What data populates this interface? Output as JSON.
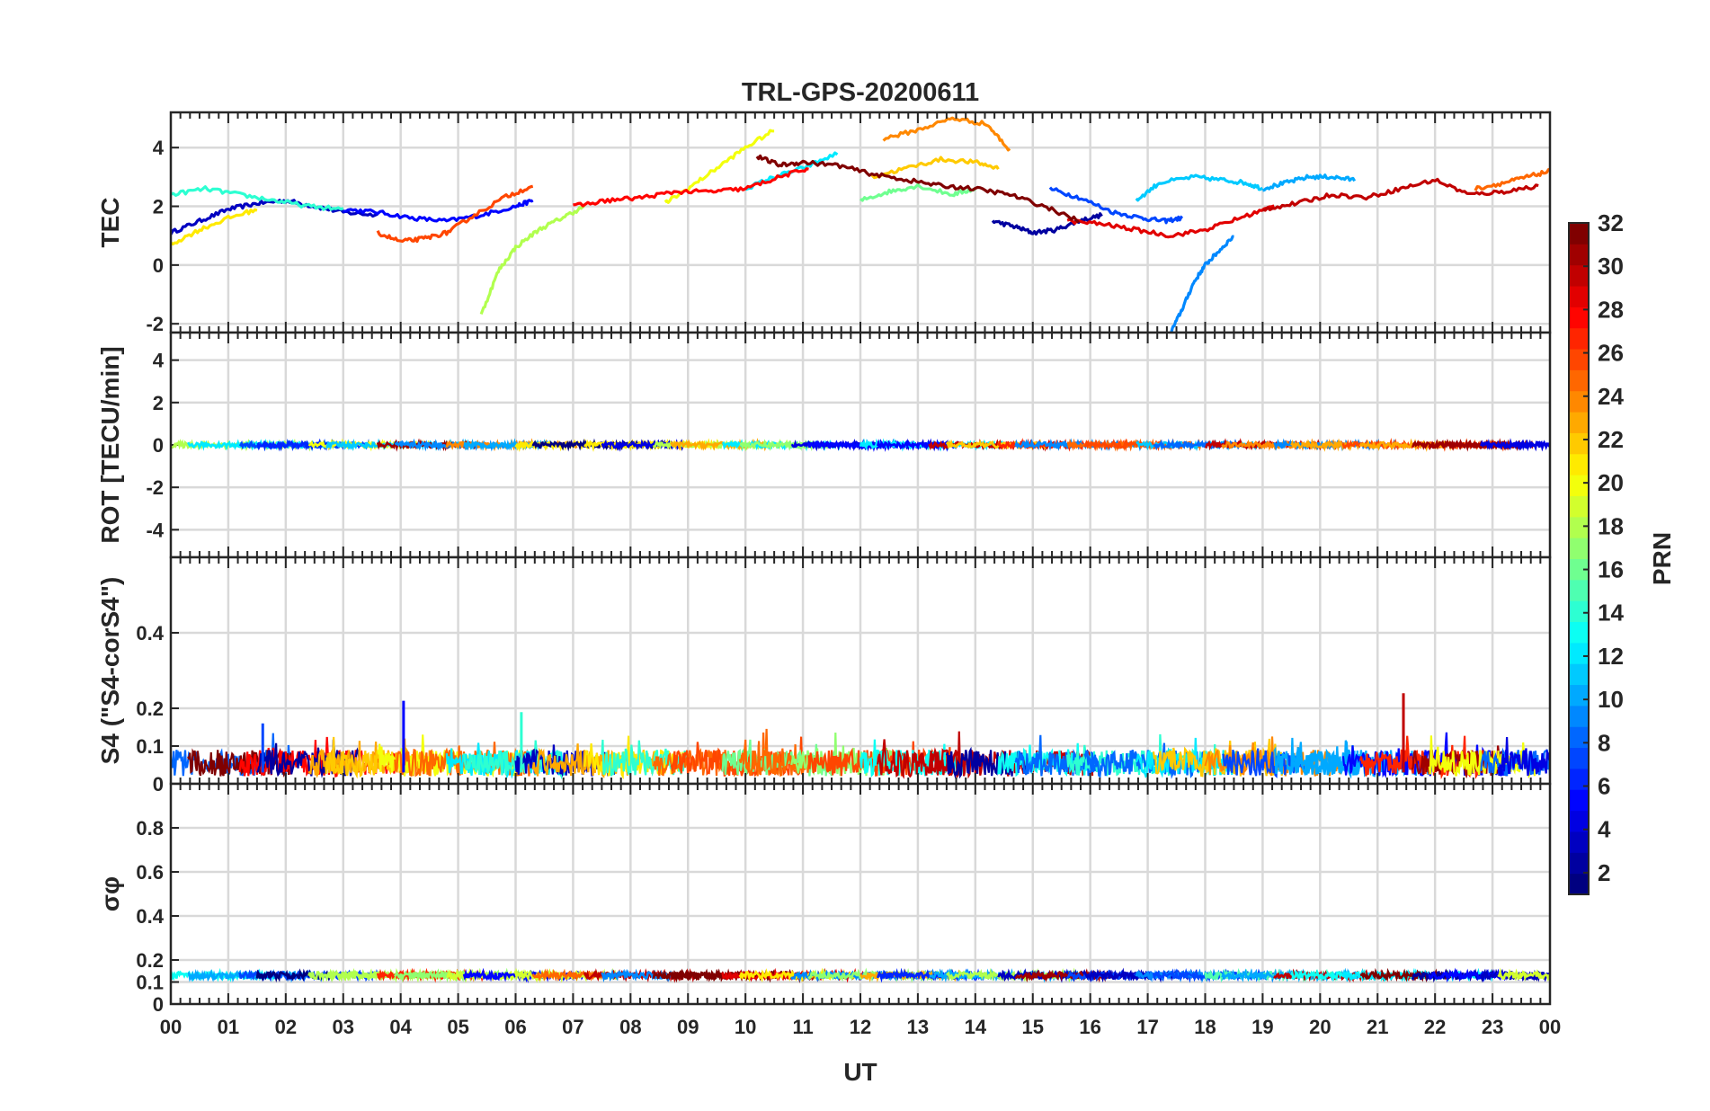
{
  "chart_data": {
    "type": "line",
    "title": "TRL-GPS-20200611",
    "xlabel": "UT",
    "x_ticks": [
      "00",
      "01",
      "02",
      "03",
      "04",
      "05",
      "06",
      "07",
      "08",
      "09",
      "10",
      "11",
      "12",
      "13",
      "14",
      "15",
      "16",
      "17",
      "18",
      "19",
      "20",
      "21",
      "22",
      "23",
      "00"
    ],
    "xlim_hours": [
      0,
      24
    ],
    "panels": [
      {
        "id": "tec",
        "ylabel": "TEC",
        "ylim": [
          -2.3,
          5.2
        ],
        "yticks": [
          -2,
          0,
          2,
          4
        ],
        "ytick_labels": [
          "-2",
          "0",
          "2",
          "4"
        ],
        "series": [
          {
            "prn": 3,
            "x": [
              0.0,
              0.5,
              1.0,
              1.5,
              2.0,
              2.5,
              3.0,
              3.6
            ],
            "y": [
              1.1,
              1.5,
              1.9,
              2.1,
              2.2,
              2.0,
              1.8,
              1.7
            ]
          },
          {
            "prn": 5,
            "x": [
              3.0,
              3.6,
              4.2,
              4.8,
              5.4,
              6.0,
              6.3
            ],
            "y": [
              1.9,
              1.8,
              1.6,
              1.5,
              1.7,
              2.0,
              2.2
            ]
          },
          {
            "prn": 2,
            "x": [
              14.3,
              14.7,
              15.0,
              15.4,
              15.8,
              16.2
            ],
            "y": [
              1.5,
              1.3,
              1.1,
              1.2,
              1.5,
              1.7
            ]
          },
          {
            "prn": 7,
            "x": [
              15.3,
              15.8,
              16.4,
              16.9,
              17.3,
              17.6
            ],
            "y": [
              2.6,
              2.3,
              1.8,
              1.6,
              1.5,
              1.6
            ]
          },
          {
            "prn": 9,
            "x": [
              17.4,
              17.6,
              17.8,
              18.0,
              18.2,
              18.5
            ],
            "y": [
              -2.3,
              -1.5,
              -0.6,
              0.0,
              0.4,
              1.0
            ]
          },
          {
            "prn": 11,
            "x": [
              16.8,
              17.2,
              17.8,
              18.3,
              18.7,
              19.0
            ],
            "y": [
              2.2,
              2.8,
              3.0,
              2.9,
              2.8,
              2.6
            ]
          },
          {
            "prn": 10,
            "x": [
              19.0,
              19.4,
              19.8,
              20.2,
              20.6
            ],
            "y": [
              2.6,
              2.8,
              3.0,
              3.0,
              2.9
            ]
          },
          {
            "prn": 12,
            "x": [
              10.0,
              10.5,
              11.0,
              11.6
            ],
            "y": [
              2.6,
              3.0,
              3.3,
              3.8
            ]
          },
          {
            "prn": 14,
            "x": [
              0.0,
              0.6,
              1.2,
              1.8,
              2.4,
              3.0
            ],
            "y": [
              2.4,
              2.6,
              2.4,
              2.2,
              2.0,
              1.9
            ]
          },
          {
            "prn": 16,
            "x": [
              12.0,
              12.5,
              13.0,
              13.6,
              14.0
            ],
            "y": [
              2.2,
              2.5,
              2.7,
              2.4,
              2.6
            ]
          },
          {
            "prn": 18,
            "x": [
              5.4,
              5.7,
              6.0,
              6.4,
              6.8,
              7.2
            ],
            "y": [
              -1.7,
              -0.2,
              0.6,
              1.2,
              1.6,
              2.0
            ]
          },
          {
            "prn": 20,
            "x": [
              8.6,
              9.0,
              9.5,
              10.0,
              10.5
            ],
            "y": [
              2.1,
              2.6,
              3.3,
              4.0,
              4.6
            ]
          },
          {
            "prn": 21,
            "x": [
              0.0,
              0.5,
              1.0,
              1.5
            ],
            "y": [
              0.7,
              1.2,
              1.6,
              1.9
            ]
          },
          {
            "prn": 22,
            "x": [
              12.2,
              12.8,
              13.4,
              14.0,
              14.4
            ],
            "y": [
              3.0,
              3.3,
              3.6,
              3.5,
              3.3
            ]
          },
          {
            "prn": 24,
            "x": [
              12.4,
              13.0,
              13.6,
              14.2,
              14.6
            ],
            "y": [
              4.3,
              4.6,
              5.0,
              4.8,
              3.9
            ]
          },
          {
            "prn": 25,
            "x": [
              22.7,
              23.2,
              23.6,
              24.0
            ],
            "y": [
              2.6,
              2.8,
              3.0,
              3.2
            ]
          },
          {
            "prn": 26,
            "x": [
              3.6,
              4.0,
              4.4,
              4.8,
              5.2,
              5.8,
              6.3
            ],
            "y": [
              1.1,
              0.8,
              0.9,
              1.1,
              1.6,
              2.3,
              2.7
            ]
          },
          {
            "prn": 28,
            "x": [
              7.0,
              7.6,
              8.2,
              8.8,
              9.4,
              10.0,
              10.6,
              11.1
            ],
            "y": [
              2.0,
              2.2,
              2.3,
              2.5,
              2.5,
              2.6,
              3.0,
              3.3
            ]
          },
          {
            "prn": 29,
            "x": [
              15.6,
              16.2,
              16.8,
              17.4,
              18.0,
              18.6,
              19.2
            ],
            "y": [
              1.5,
              1.4,
              1.2,
              1.0,
              1.2,
              1.6,
              2.0
            ]
          },
          {
            "prn": 30,
            "x": [
              19.0,
              19.6,
              20.2,
              20.8,
              21.4,
              22.0,
              22.6,
              23.2,
              23.8
            ],
            "y": [
              1.9,
              2.1,
              2.4,
              2.3,
              2.6,
              2.9,
              2.4,
              2.5,
              2.7
            ]
          },
          {
            "prn": 32,
            "x": [
              10.2,
              10.6,
              11.0,
              11.6,
              12.2,
              12.8,
              13.4,
              14.0,
              14.6,
              15.2,
              15.8
            ],
            "y": [
              3.7,
              3.4,
              3.5,
              3.4,
              3.1,
              2.9,
              2.7,
              2.6,
              2.4,
              2.0,
              1.5
            ]
          }
        ]
      },
      {
        "id": "rot",
        "ylabel": "ROT [TECU/min]",
        "ylim": [
          -5.3,
          5.3
        ],
        "yticks": [
          -4,
          -2,
          0,
          2,
          4
        ],
        "ytick_labels": [
          "-4",
          "-2",
          "0",
          "2",
          "4"
        ],
        "summary": "ROT stays near 0 TECU/min for all PRNs across the day (within about +/-0.2)"
      },
      {
        "id": "s4",
        "ylabel": "S4 (\"S4-corS4\")",
        "ylim": [
          0,
          0.6
        ],
        "yticks": [
          0,
          0.1,
          0.2,
          0.4
        ],
        "ytick_labels": [
          "0",
          "0.1",
          "0.2",
          "0.4"
        ],
        "summary": "S4 mostly between 0.02 and 0.12 throughout the day",
        "peaks": [
          {
            "hour": 4.05,
            "value": 0.22,
            "prn": 5
          },
          {
            "hour": 21.45,
            "value": 0.24,
            "prn": 30
          },
          {
            "hour": 1.6,
            "value": 0.16,
            "prn": 7
          },
          {
            "hour": 6.1,
            "value": 0.19,
            "prn": 14
          }
        ]
      },
      {
        "id": "sigphi",
        "ylabel": "σφ",
        "ylim": [
          0,
          1.0
        ],
        "yticks": [
          0,
          0.1,
          0.2,
          0.4,
          0.6,
          0.8
        ],
        "ytick_labels": [
          "0",
          "0.1",
          "0.2",
          "0.4",
          "0.6",
          "0.8"
        ],
        "summary": "Sigma phi roughly constant at about 0.12 to 0.15 throughout the day"
      }
    ],
    "colorbar": {
      "label": "PRN",
      "range": [
        1,
        32
      ],
      "ticks": [
        2,
        4,
        6,
        8,
        10,
        12,
        14,
        16,
        18,
        20,
        22,
        24,
        26,
        28,
        30,
        32
      ],
      "tick_labels": [
        "2",
        "4",
        "6",
        "8",
        "10",
        "12",
        "14",
        "16",
        "18",
        "20",
        "22",
        "24",
        "26",
        "28",
        "30",
        "32"
      ],
      "colormap": "jet"
    }
  }
}
